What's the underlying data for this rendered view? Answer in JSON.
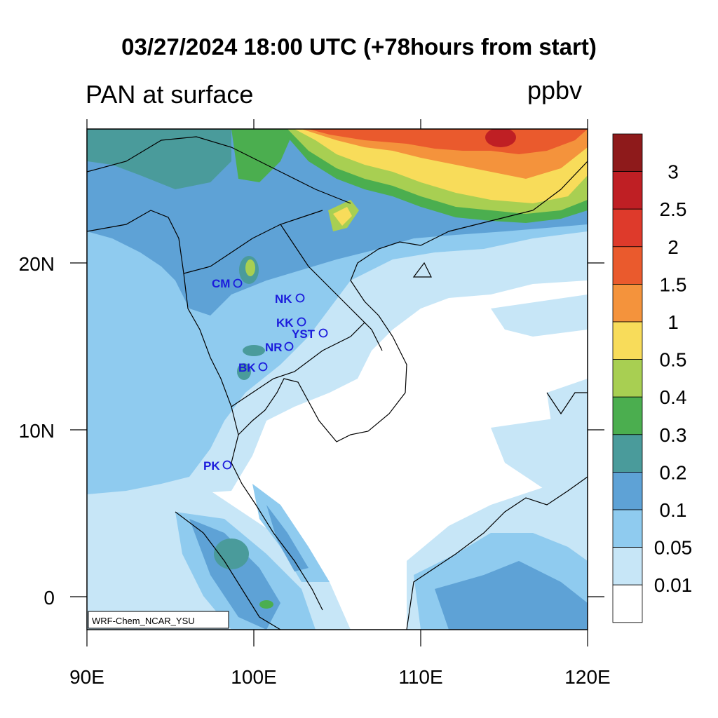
{
  "title": "03/27/2024 18:00 UTC (+78hours from start)",
  "variable": "PAN at surface",
  "units": "ppbv",
  "credit": "WRF-Chem_NCAR_YSU",
  "axes": {
    "x_ticks": [
      "90E",
      "100E",
      "110E",
      "120E"
    ],
    "y_ticks": [
      "20N",
      "10N",
      "0"
    ]
  },
  "colorbar": {
    "levels": [
      "3",
      "2.5",
      "2",
      "1.5",
      "1",
      "0.5",
      "0.4",
      "0.3",
      "0.2",
      "0.1",
      "0.05",
      "0.01"
    ],
    "colors": [
      "#8e1a1b",
      "#bf1f24",
      "#de3a2b",
      "#ea5a2d",
      "#f4933c",
      "#f8dc5a",
      "#a8cf52",
      "#4bae4f",
      "#4a9b9b",
      "#5ea2d6",
      "#8fcbef",
      "#c7e6f7",
      "#ffffff"
    ]
  },
  "sites": [
    {
      "code": "CM"
    },
    {
      "code": "NK"
    },
    {
      "code": "KK"
    },
    {
      "code": "YST"
    },
    {
      "code": "NR"
    },
    {
      "code": "BK"
    },
    {
      "code": "PK"
    }
  ]
}
